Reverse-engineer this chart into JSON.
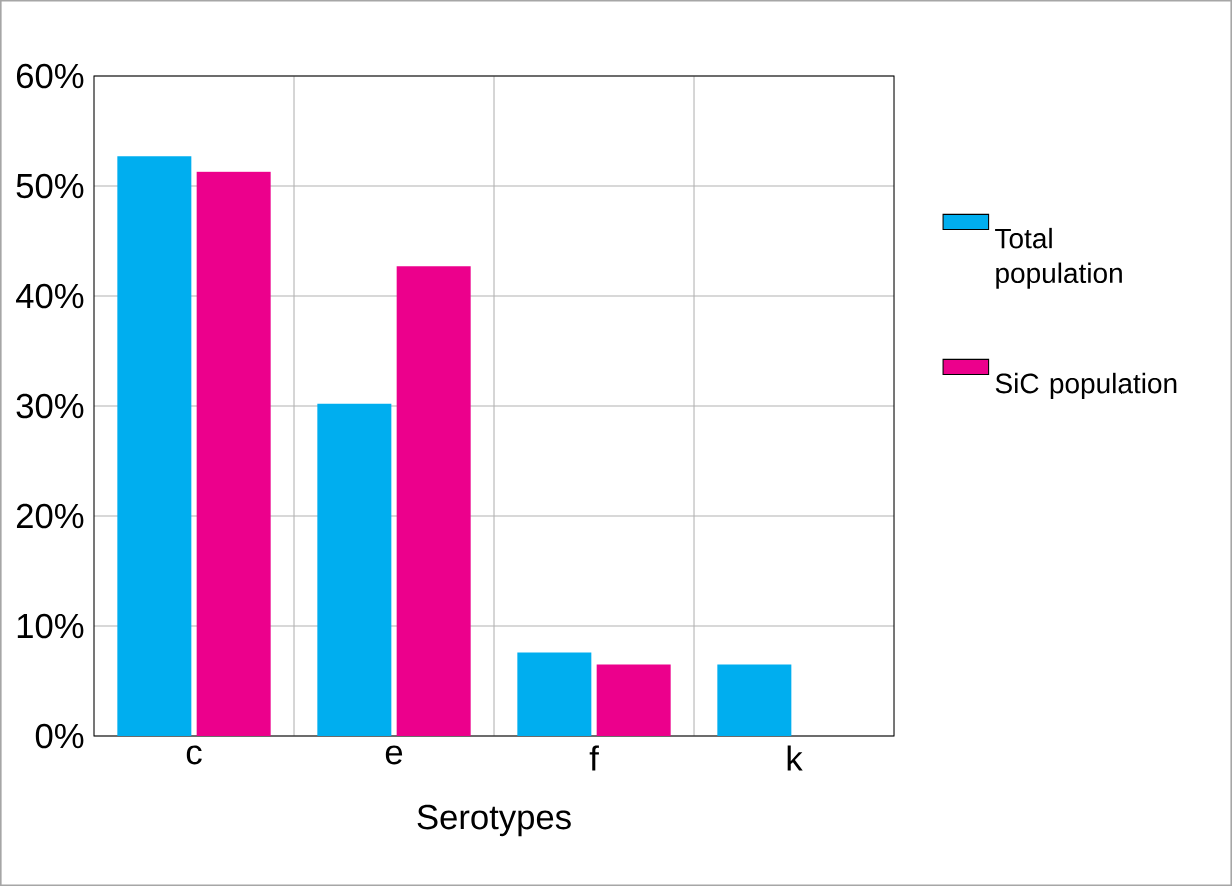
{
  "chart_data": {
    "type": "bar",
    "xlabel": "Serotypes",
    "categories": [
      "c",
      "e",
      "f",
      "k"
    ],
    "series": [
      {
        "name": "Total population",
        "color": "#00aeef",
        "values": [
          52.7,
          30.2,
          7.6,
          6.5
        ]
      },
      {
        "name": "SiC population",
        "color": "#ec008c",
        "values": [
          51.3,
          42.7,
          6.5,
          0
        ]
      }
    ],
    "ylim": [
      0,
      60
    ],
    "yticks": [
      {
        "value": 0,
        "label": "0%"
      },
      {
        "value": 10,
        "label": "10%"
      },
      {
        "value": 20,
        "label": "20%"
      },
      {
        "value": 30,
        "label": "30%"
      },
      {
        "value": 40,
        "label": "40%"
      },
      {
        "value": 50,
        "label": "50%"
      },
      {
        "value": 60,
        "label": "60%"
      }
    ],
    "grid": true,
    "legend": "right"
  }
}
